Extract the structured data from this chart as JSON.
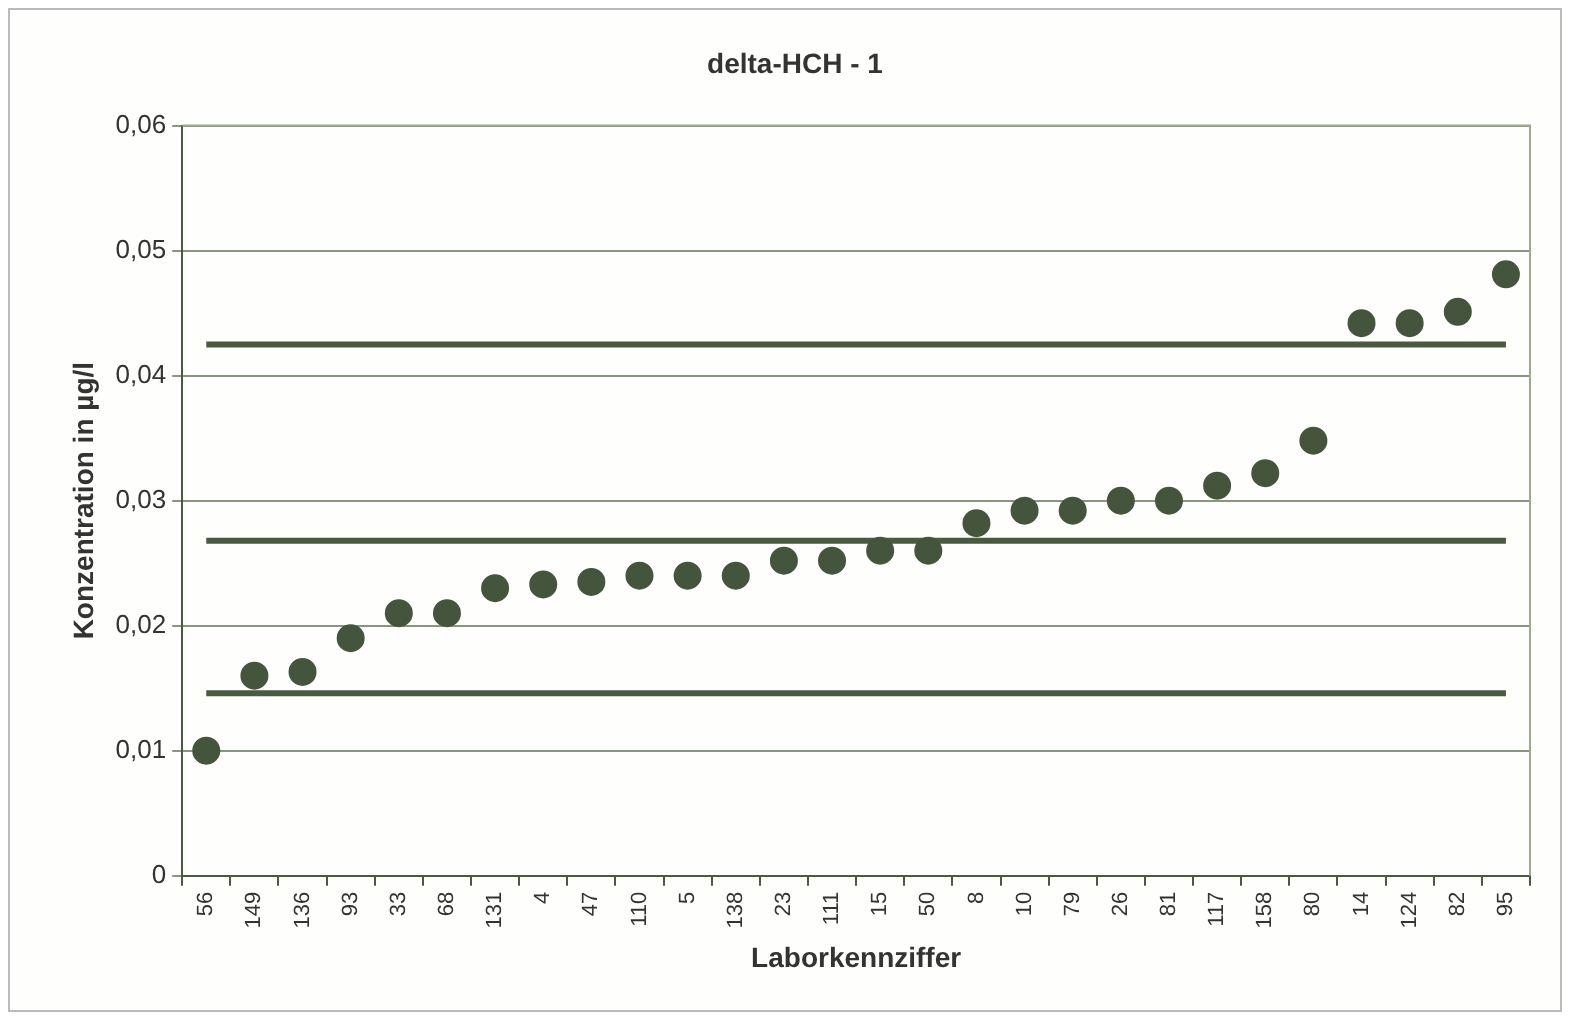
{
  "chart_data": {
    "type": "scatter",
    "title": "delta-HCH - 1",
    "xlabel": "Laborkennziffer",
    "ylabel": "Konzentration in µg/l",
    "categories": [
      "56",
      "149",
      "136",
      "93",
      "33",
      "68",
      "131",
      "4",
      "47",
      "110",
      "5",
      "138",
      "23",
      "111",
      "15",
      "50",
      "8",
      "10",
      "79",
      "26",
      "81",
      "117",
      "158",
      "80",
      "14",
      "124",
      "82",
      "95"
    ],
    "series": [
      {
        "color": "#45543d",
        "values": [
          0.01,
          0.016,
          0.0163,
          0.019,
          0.021,
          0.021,
          0.023,
          0.0233,
          0.0235,
          0.024,
          0.024,
          0.024,
          0.0252,
          0.0252,
          0.026,
          0.026,
          0.0282,
          0.0292,
          0.0292,
          0.03,
          0.03,
          0.0312,
          0.0322,
          0.0348,
          0.0442,
          0.0442,
          0.0451,
          0.0481
        ]
      }
    ],
    "ylim": [
      0,
      0.06
    ],
    "yticks": [
      {
        "value": 0,
        "label": "0"
      },
      {
        "value": 0.01,
        "label": "0,01"
      },
      {
        "value": 0.02,
        "label": "0,02"
      },
      {
        "value": 0.03,
        "label": "0,03"
      },
      {
        "value": 0.04,
        "label": "0,04"
      },
      {
        "value": 0.05,
        "label": "0,05"
      },
      {
        "value": 0.06,
        "label": "0,06"
      }
    ],
    "ref_lines": [
      {
        "axis": "y",
        "value": 0.0425,
        "color": "#4a5a40"
      },
      {
        "axis": "y",
        "value": 0.0268,
        "color": "#4a5a40"
      },
      {
        "axis": "y",
        "value": 0.0146,
        "color": "#4a5a40"
      }
    ],
    "grid": "y",
    "legend": false,
    "marker": "circle"
  }
}
